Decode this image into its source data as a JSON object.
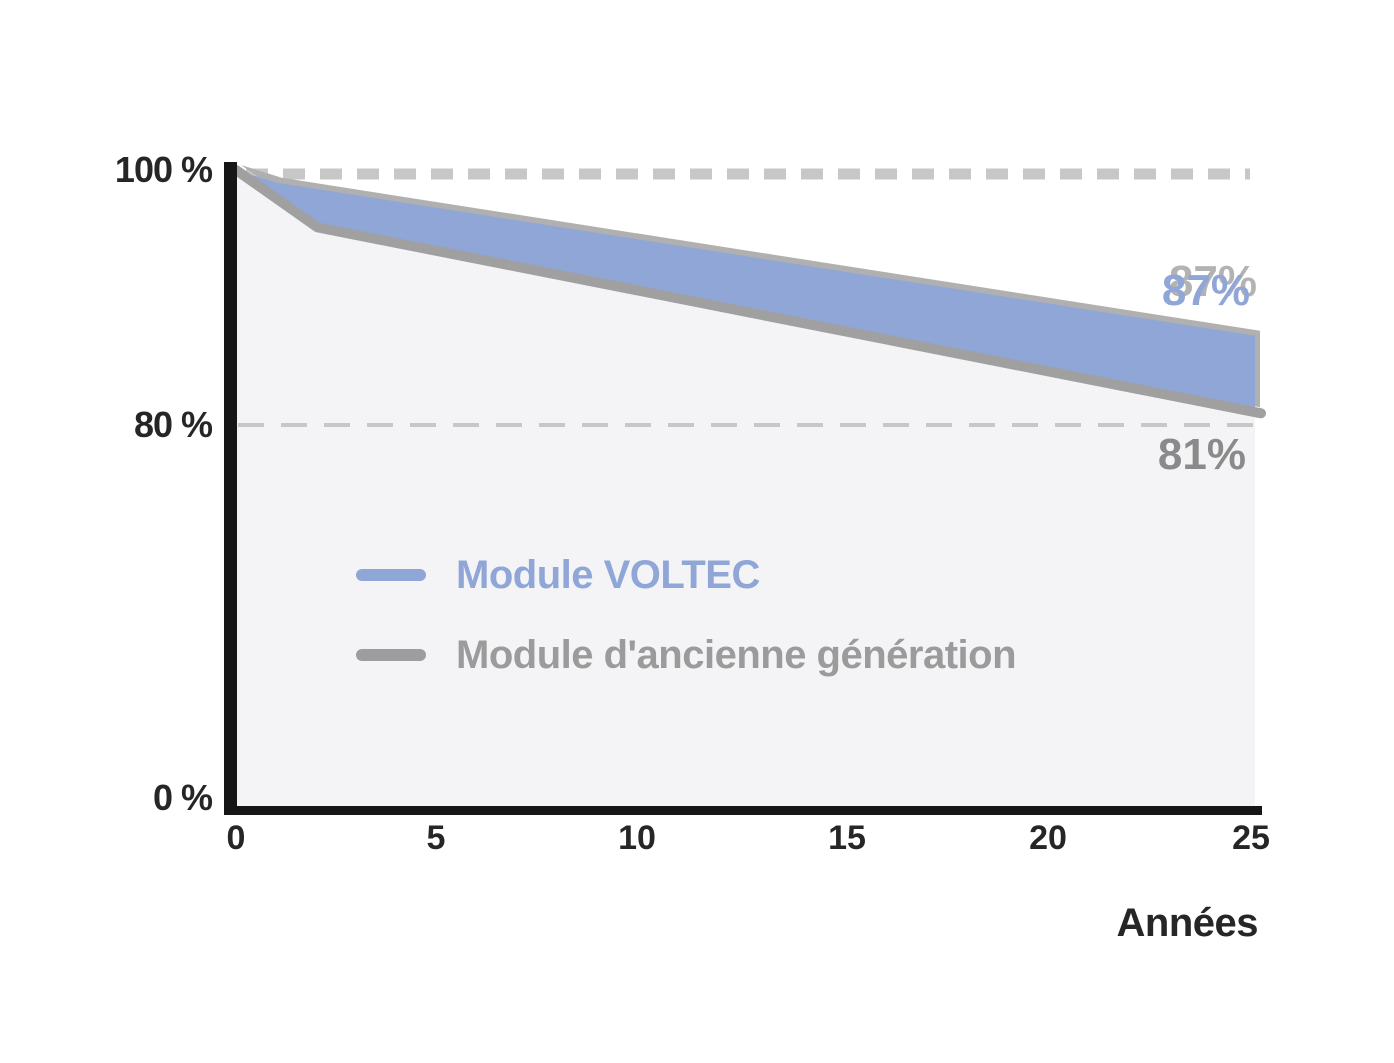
{
  "colors": {
    "blue": "#8fa6d7",
    "gray_line": "#a0a0a0",
    "gray_text": "#9b9b9b",
    "plot_fill": "#f4f4f6",
    "dash_gray": "#c7c7c7",
    "axis_black": "#161616",
    "dark_text": "#262626",
    "shadow_gray": "#b0b0b0",
    "end_label_gray": "#8a8a8a"
  },
  "chart_data": {
    "type": "area",
    "xlabel": "Années",
    "x_range": [
      0,
      25
    ],
    "x_ticks": [
      "0",
      "5",
      "10",
      "15",
      "20",
      "25"
    ],
    "y_axis_labels": [
      {
        "text": "100 %",
        "value": 100
      },
      {
        "text": "80 %",
        "value": 80
      },
      {
        "text": "0 %",
        "value": 0
      }
    ],
    "reference_lines": [
      {
        "value": 100,
        "style": "dashed-thick"
      },
      {
        "value": 80,
        "style": "dashed-thin"
      }
    ],
    "legend_position": "inside-left-middle",
    "series": [
      {
        "name": "Module VOLTEC",
        "color": "#8fa6d7",
        "end_label": "87%",
        "end_value_pct": 87,
        "points": [
          [
            0,
            100
          ],
          [
            1,
            99
          ],
          [
            25,
            87
          ]
        ]
      },
      {
        "name": "Module d'ancienne génération",
        "color": "#9d9d9d",
        "end_label": "81%",
        "end_value_pct": 81,
        "points": [
          [
            0,
            100
          ],
          [
            2,
            95.5
          ],
          [
            25,
            81
          ]
        ]
      }
    ]
  }
}
